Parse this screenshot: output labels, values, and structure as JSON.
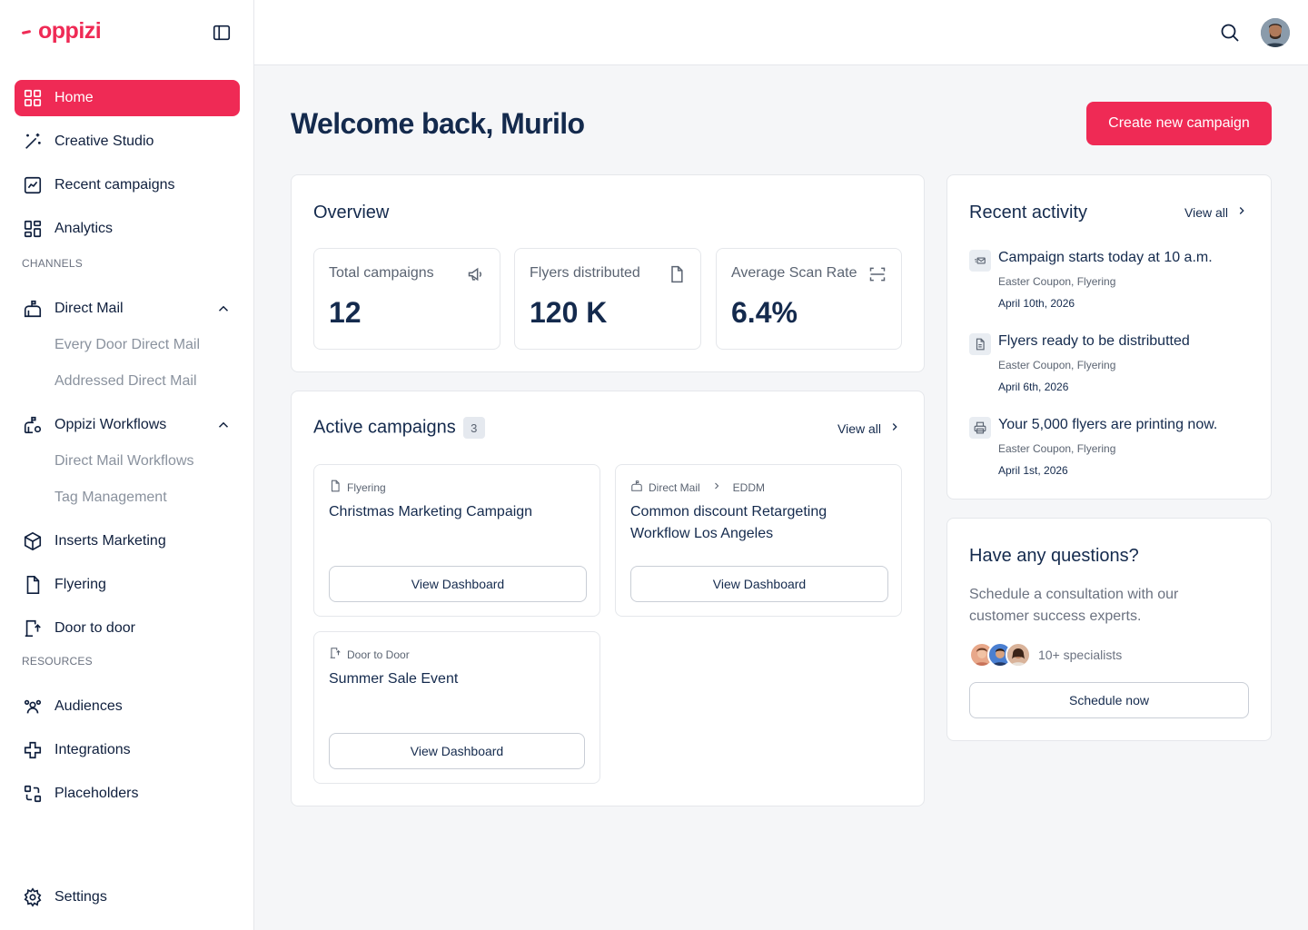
{
  "brand": {
    "name": "oppizi",
    "accent": "#ef2a55"
  },
  "sidebar": {
    "items": [
      {
        "label": "Home",
        "icon": "grid-icon"
      },
      {
        "label": "Creative Studio",
        "icon": "sparkle-wand-icon"
      },
      {
        "label": "Recent campaigns",
        "icon": "chart-line-icon"
      },
      {
        "label": "Analytics",
        "icon": "dashboard-icon"
      }
    ],
    "channels_label": "CHANNELS",
    "direct_mail": {
      "label": "Direct Mail",
      "children": [
        "Every Door Direct Mail",
        "Addressed Direct Mail"
      ]
    },
    "workflows": {
      "label": "Oppizi Workflows",
      "children": [
        "Direct Mail Workflows",
        "Tag Management"
      ]
    },
    "more_channels": [
      {
        "label": "Inserts Marketing",
        "icon": "box-icon"
      },
      {
        "label": "Flyering",
        "icon": "file-icon"
      },
      {
        "label": "Door to door",
        "icon": "door-icon"
      }
    ],
    "resources_label": "RESOURCES",
    "resources": [
      {
        "label": "Audiences",
        "icon": "users-icon"
      },
      {
        "label": "Integrations",
        "icon": "puzzle-icon"
      },
      {
        "label": "Placeholders",
        "icon": "placeholder-icon"
      }
    ],
    "settings_label": "Settings"
  },
  "header": {
    "welcome": "Welcome back, Murilo",
    "create_label": "Create new campaign"
  },
  "overview": {
    "title": "Overview",
    "stats": [
      {
        "label": "Total campaigns",
        "value": "12",
        "icon": "megaphone-icon"
      },
      {
        "label": "Flyers distributed",
        "value": "120 K",
        "icon": "file-icon"
      },
      {
        "label": "Average Scan Rate",
        "value": "6.4%",
        "icon": "scan-icon"
      }
    ]
  },
  "active": {
    "title": "Active campaigns",
    "count": "3",
    "view_all": "View all",
    "campaigns": [
      {
        "channel": "Flyering",
        "sub": "",
        "name": "Christmas Marketing Campaign",
        "button": "View Dashboard"
      },
      {
        "channel": "Direct Mail",
        "sub": "EDDM",
        "name": "Common discount Retargeting Workflow Los Angeles",
        "button": "View Dashboard"
      },
      {
        "channel": "Door to Door",
        "sub": "",
        "name": "Summer Sale Event",
        "button": "View Dashboard"
      }
    ]
  },
  "activity": {
    "title": "Recent activity",
    "view_all": "View all",
    "items": [
      {
        "title": "Campaign starts today at 10 a.m.",
        "sub": "Easter Coupon, Flyering",
        "date": "April 10th, 2026",
        "icon": "mail-icon"
      },
      {
        "title": "Flyers ready to be distributted",
        "sub": "Easter Coupon, Flyering",
        "date": "April 6th, 2026",
        "icon": "document-icon"
      },
      {
        "title": "Your 5,000 flyers are printing now.",
        "sub": "Easter Coupon, Flyering",
        "date": "April 1st, 2026",
        "icon": "printer-icon"
      }
    ]
  },
  "questions": {
    "title": "Have any questions?",
    "text": "Schedule a consultation with our customer success experts.",
    "specialists": "10+ specialists",
    "button": "Schedule now"
  }
}
